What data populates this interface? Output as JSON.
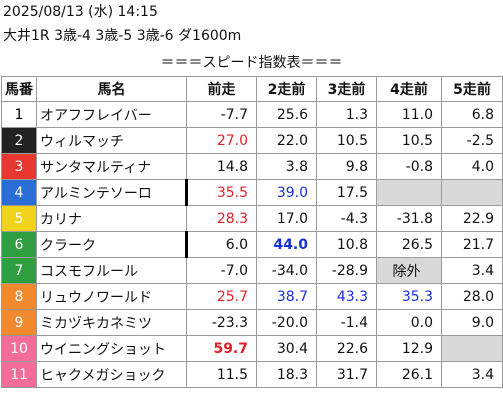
{
  "header": {
    "datetime": "2025/08/13 (水) 14:15",
    "race": "大井1R 3歳-4 3歳-5 3歳-6 ダ1600m",
    "banner": "＝＝＝スピード指数表＝＝＝"
  },
  "table": {
    "columns": [
      "馬番",
      "馬名",
      "前走",
      "2走前",
      "3走前",
      "4走前",
      "5走前"
    ],
    "rows": [
      {
        "num": "1",
        "name": "オアフフレイバー",
        "frame_color": "#ffffff",
        "num_color": "#000000",
        "values": [
          "-7.7",
          "25.6",
          "1.3",
          "11.0",
          "6.8"
        ],
        "styles": [
          null,
          null,
          null,
          null,
          null
        ]
      },
      {
        "num": "2",
        "name": "ウィルマッチ",
        "frame_color": "#222222",
        "num_color": "#ffffff",
        "values": [
          "27.0",
          "22.0",
          "10.5",
          "10.5",
          "-2.5"
        ],
        "styles": [
          "red",
          null,
          null,
          null,
          null
        ]
      },
      {
        "num": "3",
        "name": "サンタマルティナ",
        "frame_color": "#e8372f",
        "num_color": "#ffffff",
        "values": [
          "14.8",
          "3.8",
          "9.8",
          "-0.8",
          "4.0"
        ],
        "styles": [
          null,
          null,
          null,
          null,
          null
        ]
      },
      {
        "num": "4",
        "name": "アルミンテソーロ",
        "frame_color": "#2b6fd6",
        "num_color": "#ffffff",
        "values": [
          "35.5",
          "39.0",
          "17.5",
          null,
          null
        ],
        "styles": [
          "red",
          "blue",
          null,
          "gray",
          "gray"
        ],
        "marker": true
      },
      {
        "num": "5",
        "name": "カリナ",
        "frame_color": "#f2d21b",
        "num_color": "#ffffff",
        "values": [
          "28.3",
          "17.0",
          "-4.3",
          "-31.8",
          "22.9"
        ],
        "styles": [
          "red",
          null,
          null,
          null,
          null
        ]
      },
      {
        "num": "6",
        "name": "クラーク",
        "frame_color": "#2e9e3e",
        "num_color": "#ffffff",
        "values": [
          "6.0",
          "44.0",
          "10.8",
          "26.5",
          "21.7"
        ],
        "styles": [
          null,
          "bold-blue",
          null,
          null,
          null
        ],
        "marker": true
      },
      {
        "num": "7",
        "name": "コスモフルール",
        "frame_color": "#2e9e3e",
        "num_color": "#ffffff",
        "values": [
          "-7.0",
          "-34.0",
          "-28.9",
          "除外",
          "3.4"
        ],
        "styles": [
          null,
          null,
          null,
          "gray",
          null
        ]
      },
      {
        "num": "8",
        "name": "リュウノワールド",
        "frame_color": "#f08a2c",
        "num_color": "#ffffff",
        "values": [
          "25.7",
          "38.7",
          "43.3",
          "35.3",
          "28.0"
        ],
        "styles": [
          "red",
          "blue",
          "blue",
          "blue",
          null
        ]
      },
      {
        "num": "9",
        "name": "ミカヅキカネミツ",
        "frame_color": "#f08a2c",
        "num_color": "#ffffff",
        "values": [
          "-23.3",
          "-20.0",
          "-1.4",
          "0.0",
          "9.0"
        ],
        "styles": [
          null,
          null,
          null,
          null,
          null
        ]
      },
      {
        "num": "10",
        "name": "ウイニングショット",
        "frame_color": "#f26d9a",
        "num_color": "#ffffff",
        "values": [
          "59.7",
          "30.4",
          "22.6",
          "12.9",
          null
        ],
        "styles": [
          "bold-red",
          null,
          null,
          null,
          "gray"
        ]
      },
      {
        "num": "11",
        "name": "ヒャクメガショック",
        "frame_color": "#f26d9a",
        "num_color": "#ffffff",
        "values": [
          "11.5",
          "18.3",
          "31.7",
          "26.1",
          "3.4"
        ],
        "styles": [
          null,
          null,
          null,
          null,
          null
        ]
      }
    ]
  }
}
